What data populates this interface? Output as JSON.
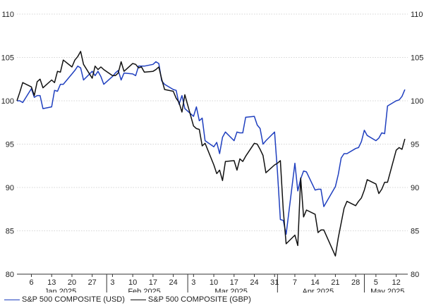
{
  "chart_data": {
    "type": "line",
    "title": "",
    "xlabel": "",
    "ylabel": "",
    "ylim": [
      80,
      110
    ],
    "yticks": [
      80,
      85,
      90,
      95,
      100,
      105,
      110
    ],
    "grid": "horizontal dotted",
    "legend_position": "bottom-left",
    "x_start": "2025-01-01",
    "x_end": "2025-05-16",
    "day_ticks": [
      {
        "date": "2025-01-06",
        "label": "6"
      },
      {
        "date": "2025-01-13",
        "label": "13"
      },
      {
        "date": "2025-01-20",
        "label": "20"
      },
      {
        "date": "2025-01-27",
        "label": "27"
      },
      {
        "date": "2025-02-03",
        "label": "3"
      },
      {
        "date": "2025-02-10",
        "label": "10"
      },
      {
        "date": "2025-02-17",
        "label": "17"
      },
      {
        "date": "2025-02-24",
        "label": "24"
      },
      {
        "date": "2025-03-03",
        "label": "3"
      },
      {
        "date": "2025-03-10",
        "label": "10"
      },
      {
        "date": "2025-03-17",
        "label": "17"
      },
      {
        "date": "2025-03-24",
        "label": "24"
      },
      {
        "date": "2025-03-31",
        "label": "31"
      },
      {
        "date": "2025-04-07",
        "label": "7"
      },
      {
        "date": "2025-04-14",
        "label": "14"
      },
      {
        "date": "2025-04-21",
        "label": "21"
      },
      {
        "date": "2025-04-28",
        "label": "28"
      },
      {
        "date": "2025-05-05",
        "label": "5"
      },
      {
        "date": "2025-05-12",
        "label": "12"
      }
    ],
    "month_labels": [
      {
        "date": "2025-01-16",
        "label": "Jan 2025"
      },
      {
        "date": "2025-02-14",
        "label": "Feb 2025"
      },
      {
        "date": "2025-03-16",
        "label": "Mar 2025"
      },
      {
        "date": "2025-04-15",
        "label": "Apr 2025"
      },
      {
        "date": "2025-05-09",
        "label": "May 2025"
      }
    ],
    "month_separators": [
      "2025-02-01",
      "2025-03-01",
      "2025-04-01",
      "2025-05-01"
    ],
    "series": [
      {
        "name": "S&P 500 COMPOSITE (USD)",
        "color": "#1f3fbf",
        "points": [
          [
            "2025-01-01",
            100.0
          ],
          [
            "2025-01-02",
            100.0
          ],
          [
            "2025-01-03",
            99.8
          ],
          [
            "2025-01-06",
            101.4
          ],
          [
            "2025-01-07",
            100.4
          ],
          [
            "2025-01-08",
            100.6
          ],
          [
            "2025-01-09",
            100.6
          ],
          [
            "2025-01-10",
            99.1
          ],
          [
            "2025-01-13",
            99.3
          ],
          [
            "2025-01-14",
            101.2
          ],
          [
            "2025-01-15",
            101.1
          ],
          [
            "2025-01-16",
            101.9
          ],
          [
            "2025-01-17",
            101.9
          ],
          [
            "2025-01-20",
            103.1
          ],
          [
            "2025-01-21",
            103.5
          ],
          [
            "2025-01-22",
            104.0
          ],
          [
            "2025-01-23",
            103.8
          ],
          [
            "2025-01-24",
            102.4
          ],
          [
            "2025-01-27",
            103.4
          ],
          [
            "2025-01-28",
            102.9
          ],
          [
            "2025-01-29",
            103.4
          ],
          [
            "2025-01-30",
            102.8
          ],
          [
            "2025-01-31",
            101.9
          ],
          [
            "2025-02-03",
            102.8
          ],
          [
            "2025-02-04",
            103.2
          ],
          [
            "2025-02-05",
            103.5
          ],
          [
            "2025-02-06",
            102.4
          ],
          [
            "2025-02-07",
            103.2
          ],
          [
            "2025-02-10",
            103.1
          ],
          [
            "2025-02-11",
            102.9
          ],
          [
            "2025-02-12",
            104.0
          ],
          [
            "2025-02-13",
            104.0
          ],
          [
            "2025-02-14",
            104.0
          ],
          [
            "2025-02-17",
            104.2
          ],
          [
            "2025-02-18",
            104.5
          ],
          [
            "2025-02-19",
            104.3
          ],
          [
            "2025-02-20",
            102.3
          ],
          [
            "2025-02-21",
            101.9
          ],
          [
            "2025-02-24",
            101.3
          ],
          [
            "2025-02-25",
            101.2
          ],
          [
            "2025-02-26",
            99.6
          ],
          [
            "2025-02-27",
            100.6
          ],
          [
            "2025-02-28",
            99.1
          ],
          [
            "2025-03-03",
            98.2
          ],
          [
            "2025-03-04",
            99.3
          ],
          [
            "2025-03-05",
            97.7
          ],
          [
            "2025-03-06",
            98.0
          ],
          [
            "2025-03-07",
            95.4
          ],
          [
            "2025-03-10",
            94.7
          ],
          [
            "2025-03-11",
            95.2
          ],
          [
            "2025-03-12",
            93.9
          ],
          [
            "2025-03-13",
            95.8
          ],
          [
            "2025-03-14",
            96.4
          ],
          [
            "2025-03-17",
            95.4
          ],
          [
            "2025-03-18",
            96.4
          ],
          [
            "2025-03-19",
            96.3
          ],
          [
            "2025-03-20",
            96.3
          ],
          [
            "2025-03-21",
            98.1
          ],
          [
            "2025-03-24",
            98.2
          ],
          [
            "2025-03-25",
            97.2
          ],
          [
            "2025-03-26",
            96.8
          ],
          [
            "2025-03-27",
            95.0
          ],
          [
            "2025-03-28",
            95.4
          ],
          [
            "2025-03-31",
            96.4
          ],
          [
            "2025-04-01",
            91.8
          ],
          [
            "2025-04-02",
            86.3
          ],
          [
            "2025-04-03",
            86.2
          ],
          [
            "2025-04-04",
            84.6
          ],
          [
            "2025-04-07",
            92.8
          ],
          [
            "2025-04-08",
            89.6
          ],
          [
            "2025-04-09",
            91.0
          ],
          [
            "2025-04-10",
            91.9
          ],
          [
            "2025-04-11",
            91.8
          ],
          [
            "2025-04-14",
            89.7
          ],
          [
            "2025-04-15",
            89.8
          ],
          [
            "2025-04-16",
            89.8
          ],
          [
            "2025-04-17",
            87.8
          ],
          [
            "2025-04-21",
            90.1
          ],
          [
            "2025-04-22",
            91.5
          ],
          [
            "2025-04-23",
            93.4
          ],
          [
            "2025-04-24",
            93.9
          ],
          [
            "2025-04-25",
            93.9
          ],
          [
            "2025-04-28",
            94.5
          ],
          [
            "2025-04-29",
            94.6
          ],
          [
            "2025-04-30",
            95.3
          ],
          [
            "2025-05-01",
            96.6
          ],
          [
            "2025-05-02",
            96.0
          ],
          [
            "2025-05-05",
            95.4
          ],
          [
            "2025-05-06",
            95.7
          ],
          [
            "2025-05-07",
            96.3
          ],
          [
            "2025-05-08",
            96.2
          ],
          [
            "2025-05-09",
            99.4
          ],
          [
            "2025-05-12",
            100.0
          ],
          [
            "2025-05-13",
            100.1
          ],
          [
            "2025-05-14",
            100.5
          ],
          [
            "2025-05-15",
            101.3
          ]
        ]
      },
      {
        "name": "S&P 500 COMPOSITE (GBP)",
        "color": "#111111",
        "points": [
          [
            "2025-01-01",
            100.0
          ],
          [
            "2025-01-02",
            101.0
          ],
          [
            "2025-01-03",
            102.1
          ],
          [
            "2025-01-06",
            101.6
          ],
          [
            "2025-01-07",
            100.6
          ],
          [
            "2025-01-08",
            102.2
          ],
          [
            "2025-01-09",
            102.5
          ],
          [
            "2025-01-10",
            101.5
          ],
          [
            "2025-01-13",
            102.4
          ],
          [
            "2025-01-14",
            102.1
          ],
          [
            "2025-01-15",
            103.4
          ],
          [
            "2025-01-16",
            103.3
          ],
          [
            "2025-01-17",
            104.7
          ],
          [
            "2025-01-20",
            103.9
          ],
          [
            "2025-01-21",
            104.7
          ],
          [
            "2025-01-22",
            105.1
          ],
          [
            "2025-01-23",
            105.7
          ],
          [
            "2025-01-24",
            104.2
          ],
          [
            "2025-01-27",
            102.6
          ],
          [
            "2025-01-28",
            104.0
          ],
          [
            "2025-01-29",
            103.6
          ],
          [
            "2025-01-30",
            103.9
          ],
          [
            "2025-01-31",
            103.6
          ],
          [
            "2025-02-03",
            102.9
          ],
          [
            "2025-02-04",
            102.9
          ],
          [
            "2025-02-05",
            103.2
          ],
          [
            "2025-02-06",
            104.5
          ],
          [
            "2025-02-07",
            103.4
          ],
          [
            "2025-02-10",
            104.3
          ],
          [
            "2025-02-11",
            104.2
          ],
          [
            "2025-02-12",
            103.8
          ],
          [
            "2025-02-13",
            103.9
          ],
          [
            "2025-02-14",
            103.3
          ],
          [
            "2025-02-17",
            103.4
          ],
          [
            "2025-02-18",
            103.6
          ],
          [
            "2025-02-19",
            103.9
          ],
          [
            "2025-02-20",
            102.5
          ],
          [
            "2025-02-21",
            101.3
          ],
          [
            "2025-02-24",
            101.1
          ],
          [
            "2025-02-25",
            100.3
          ],
          [
            "2025-02-26",
            99.8
          ],
          [
            "2025-02-27",
            98.7
          ],
          [
            "2025-02-28",
            100.7
          ],
          [
            "2025-03-03",
            97.1
          ],
          [
            "2025-03-04",
            96.8
          ],
          [
            "2025-03-05",
            96.7
          ],
          [
            "2025-03-06",
            94.8
          ],
          [
            "2025-03-07",
            95.1
          ],
          [
            "2025-03-10",
            92.6
          ],
          [
            "2025-03-11",
            91.6
          ],
          [
            "2025-03-12",
            92.0
          ],
          [
            "2025-03-13",
            90.8
          ],
          [
            "2025-03-14",
            93.0
          ],
          [
            "2025-03-17",
            93.1
          ],
          [
            "2025-03-18",
            92.0
          ],
          [
            "2025-03-19",
            93.3
          ],
          [
            "2025-03-20",
            93.0
          ],
          [
            "2025-03-21",
            93.6
          ],
          [
            "2025-03-24",
            95.1
          ],
          [
            "2025-03-25",
            95.0
          ],
          [
            "2025-03-26",
            94.4
          ],
          [
            "2025-03-27",
            93.7
          ],
          [
            "2025-03-28",
            91.7
          ],
          [
            "2025-03-31",
            92.6
          ],
          [
            "2025-04-01",
            92.8
          ],
          [
            "2025-04-02",
            93.1
          ],
          [
            "2025-04-03",
            87.4
          ],
          [
            "2025-04-04",
            83.5
          ],
          [
            "2025-04-07",
            84.5
          ],
          [
            "2025-04-08",
            83.3
          ],
          [
            "2025-04-09",
            91.1
          ],
          [
            "2025-04-10",
            86.6
          ],
          [
            "2025-04-11",
            87.4
          ],
          [
            "2025-04-14",
            86.9
          ],
          [
            "2025-04-15",
            84.8
          ],
          [
            "2025-04-16",
            85.1
          ],
          [
            "2025-04-17",
            85.1
          ],
          [
            "2025-04-21",
            82.1
          ],
          [
            "2025-04-22",
            84.2
          ],
          [
            "2025-04-23",
            85.9
          ],
          [
            "2025-04-24",
            87.6
          ],
          [
            "2025-04-25",
            88.4
          ],
          [
            "2025-04-28",
            87.9
          ],
          [
            "2025-04-29",
            88.4
          ],
          [
            "2025-04-30",
            88.8
          ],
          [
            "2025-05-01",
            89.7
          ],
          [
            "2025-05-02",
            90.9
          ],
          [
            "2025-05-05",
            90.4
          ],
          [
            "2025-05-06",
            89.3
          ],
          [
            "2025-05-07",
            89.8
          ],
          [
            "2025-05-08",
            90.6
          ],
          [
            "2025-05-09",
            90.6
          ],
          [
            "2025-05-12",
            94.3
          ],
          [
            "2025-05-13",
            94.6
          ],
          [
            "2025-05-14",
            94.4
          ],
          [
            "2025-05-15",
            95.6
          ]
        ]
      }
    ]
  }
}
